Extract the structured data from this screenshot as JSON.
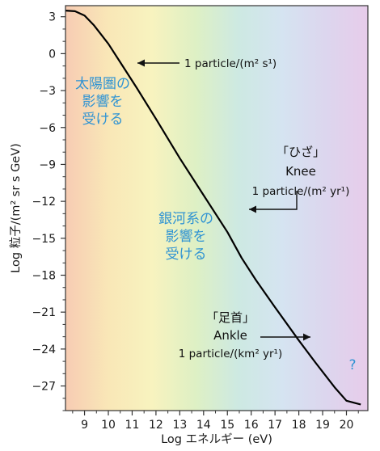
{
  "chart_data": {
    "type": "line",
    "xlabel": "Log エネルギー (eV)",
    "ylabel": "Log 粒子/(m² sr s GeV)",
    "xlim": [
      8.2,
      20.9
    ],
    "ylim": [
      -29,
      3.9
    ],
    "x_ticks": [
      9,
      10,
      11,
      12,
      13,
      14,
      15,
      16,
      17,
      18,
      19,
      20
    ],
    "y_ticks": [
      3,
      0,
      -3,
      -6,
      -9,
      -12,
      -15,
      -18,
      -21,
      -24,
      -27
    ],
    "y_tick_labels": [
      "3",
      "0",
      "−3",
      "−6",
      "−9",
      "−12",
      "−15",
      "−18",
      "−21",
      "−24",
      "−27"
    ],
    "grid": false,
    "background": "rainbow gradient",
    "background_colors": [
      "#f7ccb3",
      "#f9e7b7",
      "#f8f3bf",
      "#def0c4",
      "#cde9e2",
      "#d5e4f1",
      "#dcd6ee",
      "#e7ccea"
    ],
    "line_color": "#000000",
    "series": [
      {
        "x": [
          8.2,
          8.6,
          9.0,
          9.4,
          10.0,
          10.6,
          11.2,
          12.0,
          13.0,
          14.0,
          15.0,
          15.6,
          16.2,
          17.0,
          18.0,
          18.7,
          19.5,
          20.0,
          20.4,
          20.6
        ],
        "y": [
          3.5,
          3.45,
          3.1,
          2.3,
          0.8,
          -1.0,
          -2.8,
          -5.3,
          -8.5,
          -11.5,
          -14.5,
          -16.6,
          -18.4,
          -20.6,
          -23.3,
          -25.1,
          -27.1,
          -28.2,
          -28.4,
          -28.5
        ]
      }
    ],
    "annotations": [
      {
        "lines": [
          "1 particle/(m² s¹)"
        ],
        "color": "#000000",
        "arrow": true
      },
      {
        "lines": [
          "太陽圏の",
          "影響を",
          "受ける"
        ],
        "color": "#2f93d3"
      },
      {
        "lines": [
          "「ひざ」",
          "Knee",
          "1 particle/(m² yr¹)"
        ],
        "color": "#000000",
        "arrow": true
      },
      {
        "lines": [
          "銀河系の",
          "影響を",
          "受ける"
        ],
        "color": "#2f93d3"
      },
      {
        "lines": [
          "「足首」",
          "Ankle",
          "1 particle/(km² yr¹)"
        ],
        "color": "#000000",
        "arrow": true
      },
      {
        "lines": [
          "?"
        ],
        "color": "#2f93d3"
      }
    ]
  }
}
